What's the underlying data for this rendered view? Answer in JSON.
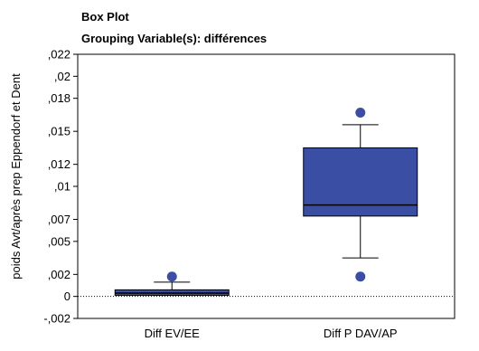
{
  "chart_data": {
    "type": "box",
    "title": "Box Plot",
    "subtitle": "Grouping Variable(s): différences",
    "ylabel": "poids Avt/après prep Eppendorf et Dent",
    "xlabel": "",
    "ylim": [
      -0.002,
      0.022
    ],
    "yticks": [
      {
        "value": 0.022,
        "label": ",022"
      },
      {
        "value": 0.02,
        "label": ",02"
      },
      {
        "value": 0.018,
        "label": ",018"
      },
      {
        "value": 0.015,
        "label": ",015"
      },
      {
        "value": 0.012,
        "label": ",012"
      },
      {
        "value": 0.01,
        "label": ",01"
      },
      {
        "value": 0.007,
        "label": ",007"
      },
      {
        "value": 0.005,
        "label": ",005"
      },
      {
        "value": 0.002,
        "label": ",002"
      },
      {
        "value": 0,
        "label": "0"
      },
      {
        "value": -0.002,
        "label": "-,002"
      }
    ],
    "reference_line": 0,
    "box_color": "#3a4fa3",
    "outlier_color": "#3a4fa3",
    "categories": [
      "Diff EV/EE",
      "Diff P DAV/AP"
    ],
    "boxes": [
      {
        "category": "Diff EV/EE",
        "whisker_low": 0.0001,
        "q1": 0.0001,
        "median": 0.0003,
        "q3": 0.0006,
        "whisker_high": 0.0013,
        "outliers": [
          0.0018
        ]
      },
      {
        "category": "Diff P DAV/AP",
        "whisker_low": 0.0035,
        "q1": 0.0073,
        "median": 0.0083,
        "q3": 0.0135,
        "whisker_high": 0.0156,
        "outliers": [
          0.0018,
          0.0167
        ]
      }
    ]
  }
}
